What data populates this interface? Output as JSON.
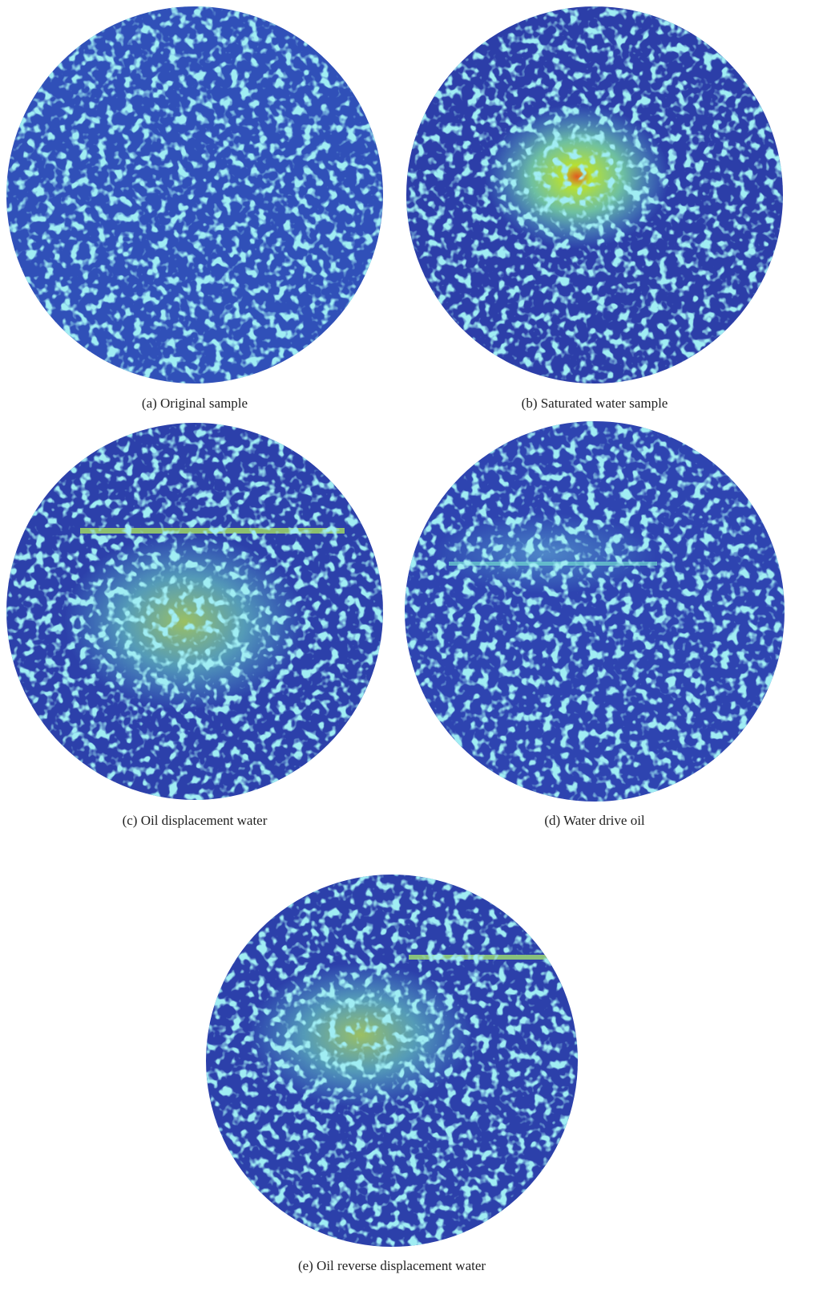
{
  "panels": [
    {
      "caption": "(a) Original sample"
    },
    {
      "caption": "(b) Saturated water sample"
    },
    {
      "caption": "(c) Oil displacement water"
    },
    {
      "caption": "(d) Water drive oil"
    },
    {
      "caption": "(e) Oil reverse displacement water"
    }
  ]
}
